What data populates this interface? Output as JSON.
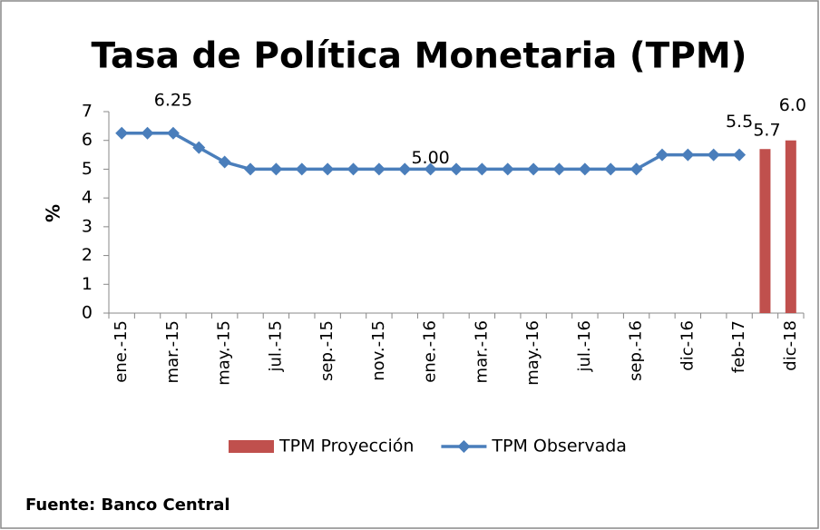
{
  "chart_data": {
    "type": "combo",
    "title": "Tasa de Política Monetaria (TPM)",
    "y_label": "%",
    "source": "Fuente: Banco Central",
    "categories": [
      "ene.-15",
      null,
      "mar.-15",
      null,
      "may.-15",
      null,
      "jul.-15",
      null,
      "sep.-15",
      null,
      "nov.-15",
      null,
      "ene.-16",
      null,
      "mar.-16",
      null,
      "may.-16",
      null,
      "jul.-16",
      null,
      "sep.-16",
      null,
      "dic-16",
      null,
      "feb-17",
      null,
      "dic-18"
    ],
    "series": [
      {
        "name": "TPM Proyección",
        "type": "bar",
        "color": "#c0504d",
        "values": [
          null,
          null,
          null,
          null,
          null,
          null,
          null,
          null,
          null,
          null,
          null,
          null,
          null,
          null,
          null,
          null,
          null,
          null,
          null,
          null,
          null,
          null,
          null,
          null,
          null,
          5.7,
          6.0
        ],
        "value_labels": [
          null,
          null,
          null,
          null,
          null,
          null,
          null,
          null,
          null,
          null,
          null,
          null,
          null,
          null,
          null,
          null,
          null,
          null,
          null,
          null,
          null,
          null,
          null,
          null,
          null,
          "5.7",
          "6.0"
        ]
      },
      {
        "name": "TPM Observada",
        "type": "line",
        "color": "#4a7ebb",
        "values": [
          6.25,
          6.25,
          6.25,
          5.75,
          5.25,
          5,
          5,
          5,
          5,
          5,
          5,
          5,
          5,
          5,
          5,
          5,
          5,
          5,
          5,
          5,
          5,
          5.5,
          5.5,
          5.5,
          5.5,
          null,
          null
        ],
        "value_labels": [
          null,
          null,
          "6.25",
          null,
          null,
          null,
          null,
          null,
          null,
          null,
          null,
          null,
          "5.00",
          null,
          null,
          null,
          null,
          null,
          null,
          null,
          null,
          null,
          null,
          null,
          "5.5",
          null,
          null
        ]
      }
    ],
    "ylim": [
      0,
      7
    ],
    "yticks": [
      0,
      1,
      2,
      3,
      4,
      5,
      6,
      7
    ],
    "grid": false,
    "legend": "bottom"
  }
}
